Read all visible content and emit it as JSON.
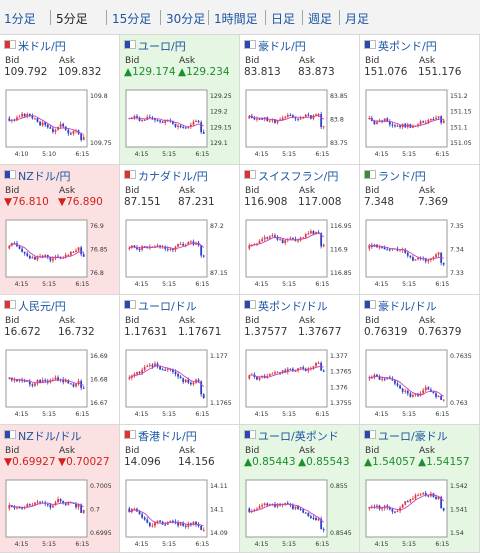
{
  "tabs": [
    {
      "label": "1分足",
      "active": false
    },
    {
      "label": "5分足",
      "active": true
    },
    {
      "label": "15分足",
      "active": false
    },
    {
      "label": "30分足",
      "active": false
    },
    {
      "label": "1時間足",
      "active": false
    },
    {
      "label": "日足",
      "active": false
    },
    {
      "label": "週足",
      "active": false
    },
    {
      "label": "月足",
      "active": false
    }
  ],
  "colors": {
    "up_candle": "#e23a3a",
    "down_candle": "#2a40c8",
    "ma_line": "#c840c0",
    "up_text": "#1b8f2c",
    "down_text": "#d62020"
  },
  "pairs": [
    {
      "name": "米ドル/円",
      "bid_label": "Bid",
      "ask_label": "Ask",
      "bid": "109.792",
      "ask": "109.832",
      "trend": "none",
      "chart": {
        "y_ticks": [
          "109.8",
          "109.75"
        ],
        "x_ticks": [
          "4:10",
          "5:10",
          "6:15"
        ],
        "seed": 3,
        "drift": -0.2,
        "spike": 0.82
      }
    },
    {
      "name": "ユーロ/円",
      "bid_label": "Bid",
      "ask_label": "Ask",
      "bid": "▲129.174",
      "ask": "▲129.234",
      "trend": "up",
      "chart": {
        "y_ticks": [
          "129.25",
          "129.2",
          "129.15",
          "129.1"
        ],
        "x_ticks": [
          "4:15",
          "5:15",
          "6:15"
        ],
        "seed": 7,
        "drift": -0.15,
        "spike": 0.7
      }
    },
    {
      "name": "豪ドル/円",
      "bid_label": "Bid",
      "ask_label": "Ask",
      "bid": "83.813",
      "ask": "83.873",
      "trend": "none",
      "chart": {
        "y_ticks": [
          "83.85",
          "83.8",
          "83.75"
        ],
        "x_ticks": [
          "4:15",
          "5:15",
          "6:15"
        ],
        "seed": 11,
        "drift": -0.25,
        "spike": 0.78
      }
    },
    {
      "name": "英ポンド/円",
      "bid_label": "Bid",
      "ask_label": "Ask",
      "bid": "151.076",
      "ask": "151.176",
      "trend": "none",
      "chart": {
        "y_ticks": [
          "151.2",
          "151.15",
          "151.1",
          "151.05"
        ],
        "x_ticks": [
          "4:15",
          "5:15",
          "6:15"
        ],
        "seed": 13,
        "drift": -0.1,
        "spike": 0.75
      }
    },
    {
      "name": "NZドル/円",
      "bid_label": "Bid",
      "ask_label": "Ask",
      "bid": "▼76.810",
      "ask": "▼76.890",
      "trend": "down",
      "chart": {
        "y_ticks": [
          "76.9",
          "76.85",
          "76.8"
        ],
        "x_ticks": [
          "4:15",
          "5:15",
          "6:15"
        ],
        "seed": 17,
        "drift": -0.3,
        "spike": 0.6
      }
    },
    {
      "name": "カナダドル/円",
      "bid_label": "Bid",
      "ask_label": "Ask",
      "bid": "87.151",
      "ask": "87.231",
      "trend": "none",
      "chart": {
        "y_ticks": [
          "87.2",
          "87.15"
        ],
        "x_ticks": [
          "4:15",
          "5:15",
          "6:15"
        ],
        "seed": 19,
        "drift": 0.05,
        "spike": 0.8
      }
    },
    {
      "name": "スイスフラン/円",
      "bid_label": "Bid",
      "ask_label": "Ask",
      "bid": "116.908",
      "ask": "117.008",
      "trend": "none",
      "chart": {
        "y_ticks": [
          "116.95",
          "116.9",
          "116.85"
        ],
        "x_ticks": [
          "4:15",
          "5:15",
          "6:15"
        ],
        "seed": 23,
        "drift": -0.2,
        "spike": 0.85
      }
    },
    {
      "name": "ランド/円",
      "bid_label": "Bid",
      "ask_label": "Ask",
      "bid": "7.348",
      "ask": "7.369",
      "trend": "none",
      "chart": {
        "y_ticks": [
          "7.35",
          "7.34",
          "7.33"
        ],
        "x_ticks": [
          "4:15",
          "5:15",
          "6:15"
        ],
        "seed": 29,
        "drift": 0.0,
        "spike": 0.95
      }
    },
    {
      "name": "人民元/円",
      "bid_label": "Bid",
      "ask_label": "Ask",
      "bid": "16.672",
      "ask": "16.732",
      "trend": "none",
      "chart": {
        "y_ticks": [
          "16.69",
          "16.68",
          "16.67"
        ],
        "x_ticks": [
          "4:15",
          "5:15",
          "6:15"
        ],
        "seed": 31,
        "drift": 0.0,
        "spike": 0.6
      }
    },
    {
      "name": "ユーロ/ドル",
      "bid_label": "Bid",
      "ask_label": "Ask",
      "bid": "1.17631",
      "ask": "1.17671",
      "trend": "none",
      "chart": {
        "y_ticks": [
          "1.177",
          "1.1765"
        ],
        "x_ticks": [
          "4:15",
          "5:15",
          "6:15"
        ],
        "seed": 37,
        "drift": -0.25,
        "spike": 0.8
      }
    },
    {
      "name": "英ポンド/ドル",
      "bid_label": "Bid",
      "ask_label": "Ask",
      "bid": "1.37577",
      "ask": "1.37677",
      "trend": "none",
      "chart": {
        "y_ticks": [
          "1.377",
          "1.3765",
          "1.376",
          "1.3755"
        ],
        "x_ticks": [
          "4:15",
          "5:15",
          "6:15"
        ],
        "seed": 41,
        "drift": -0.2,
        "spike": 0.8
      }
    },
    {
      "name": "豪ドル/ドル",
      "bid_label": "Bid",
      "ask_label": "Ask",
      "bid": "0.76319",
      "ask": "0.76379",
      "trend": "none",
      "chart": {
        "y_ticks": [
          "0.7635",
          "0.763"
        ],
        "x_ticks": [
          "4:15",
          "5:15",
          "6:15"
        ],
        "seed": 43,
        "drift": -0.15,
        "spike": 0.8
      }
    },
    {
      "name": "NZドル/ドル",
      "bid_label": "Bid",
      "ask_label": "Ask",
      "bid": "▼0.69927",
      "ask": "▼0.70027",
      "trend": "down",
      "chart": {
        "y_ticks": [
          "0.7005",
          "0.7",
          "0.6995"
        ],
        "x_ticks": [
          "4:15",
          "5:15",
          "6:15"
        ],
        "seed": 47,
        "drift": -0.3,
        "spike": 0.6
      }
    },
    {
      "name": "香港ドル/円",
      "bid_label": "Bid",
      "ask_label": "Ask",
      "bid": "14.096",
      "ask": "14.156",
      "trend": "none",
      "chart": {
        "y_ticks": [
          "14.11",
          "14.1",
          "14.09"
        ],
        "x_ticks": [
          "4:15",
          "5:15",
          "6:15"
        ],
        "seed": 53,
        "drift": -0.2,
        "spike": 0.8
      }
    },
    {
      "name": "ユーロ/英ポンド",
      "bid_label": "Bid",
      "ask_label": "Ask",
      "bid": "▲0.85443",
      "ask": "▲0.85543",
      "trend": "up",
      "chart": {
        "y_ticks": [
          "0.855",
          "0.8545"
        ],
        "x_ticks": [
          "4:15",
          "5:15",
          "6:15"
        ],
        "seed": 59,
        "drift": -0.1,
        "spike": 0.8
      }
    },
    {
      "name": "ユーロ/豪ドル",
      "bid_label": "Bid",
      "ask_label": "Ask",
      "bid": "▲1.54057",
      "ask": "▲1.54157",
      "trend": "up",
      "chart": {
        "y_ticks": [
          "1.542",
          "1.541",
          "1.54"
        ],
        "x_ticks": [
          "4:15",
          "5:15",
          "6:15"
        ],
        "seed": 61,
        "drift": -0.15,
        "spike": 0.8
      }
    }
  ]
}
